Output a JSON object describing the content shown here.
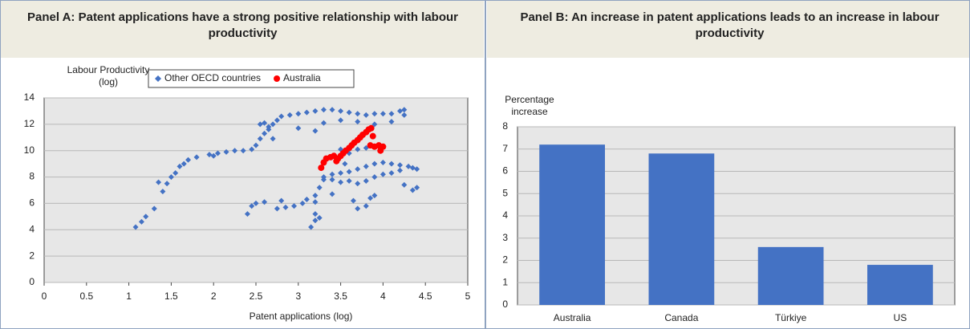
{
  "chart_data": [
    {
      "type": "scatter",
      "title": "Panel A: Patent applications have a strong positive relationship with labour productivity",
      "x_label": "Patent applications (log)",
      "y_label": "Labour Productivity (log)",
      "xlim": [
        0,
        5
      ],
      "xticks": [
        0,
        0.5,
        1,
        1.5,
        2,
        2.5,
        3,
        3.5,
        4,
        4.5,
        5
      ],
      "ylim": [
        0,
        14
      ],
      "yticks": [
        0,
        2,
        4,
        6,
        8,
        10,
        12,
        14
      ],
      "grid": true,
      "legend": "top",
      "series": [
        {
          "name": "Other OECD countries",
          "color": "#4472c4",
          "marker": "diamond",
          "x": [
            1.08,
            1.15,
            1.2,
            1.3,
            1.35,
            1.4,
            1.45,
            1.5,
            1.55,
            1.6,
            1.65,
            1.7,
            1.8,
            1.95,
            2.0,
            2.05,
            2.15,
            2.25,
            2.35,
            2.45,
            2.5,
            2.55,
            2.6,
            2.65,
            2.7,
            2.75,
            2.8,
            2.9,
            3.0,
            3.1,
            3.2,
            3.3,
            3.4,
            3.5,
            3.6,
            3.7,
            3.8,
            3.9,
            4.0,
            4.1,
            4.2,
            4.25,
            2.55,
            2.6,
            2.65,
            2.7,
            3.0,
            3.2,
            3.3,
            3.5,
            3.7,
            3.9,
            4.1,
            4.25,
            2.4,
            2.45,
            2.5,
            2.6,
            2.75,
            2.8,
            2.85,
            2.95,
            3.05,
            3.1,
            3.2,
            3.25,
            3.3,
            3.4,
            3.5,
            3.6,
            3.7,
            3.8,
            3.9,
            4.0,
            4.1,
            4.2,
            4.3,
            4.4,
            3.3,
            3.4,
            3.5,
            3.6,
            3.7,
            3.8,
            3.9,
            4.0,
            4.1,
            4.2,
            4.35,
            4.4,
            4.35,
            4.25,
            3.65,
            3.7,
            3.8,
            3.85,
            3.9,
            3.2,
            3.2,
            3.15,
            3.25,
            3.2,
            3.4,
            3.6,
            3.7,
            3.8,
            3.9,
            3.5,
            3.55
          ],
          "y": [
            4.2,
            4.6,
            5.0,
            5.6,
            7.6,
            6.9,
            7.5,
            8.0,
            8.3,
            8.8,
            9.0,
            9.3,
            9.5,
            9.7,
            9.6,
            9.8,
            9.9,
            10.0,
            10.0,
            10.1,
            10.4,
            10.9,
            11.3,
            11.6,
            12.0,
            12.3,
            12.6,
            12.7,
            12.8,
            12.9,
            13.0,
            13.1,
            13.1,
            13.0,
            12.9,
            12.8,
            12.7,
            12.8,
            12.8,
            12.8,
            13.0,
            13.1,
            12.0,
            12.1,
            11.8,
            10.9,
            11.7,
            11.5,
            12.1,
            12.3,
            12.2,
            12.0,
            12.2,
            12.7,
            5.2,
            5.8,
            6.0,
            6.1,
            5.6,
            6.2,
            5.7,
            5.8,
            6.0,
            6.3,
            6.6,
            7.2,
            7.8,
            8.2,
            8.3,
            8.4,
            8.6,
            8.8,
            9.0,
            9.1,
            9.0,
            8.9,
            8.8,
            8.6,
            8.0,
            7.8,
            7.6,
            7.7,
            7.5,
            7.7,
            8.0,
            8.2,
            8.3,
            8.5,
            8.7,
            7.2,
            7.0,
            7.4,
            6.2,
            5.6,
            5.8,
            6.4,
            6.6,
            5.2,
            4.7,
            4.2,
            4.9,
            6.1,
            6.7,
            9.8,
            10.1,
            10.2,
            10.3,
            10.1,
            9.0
          ]
        },
        {
          "name": "Australia",
          "color": "#ff0000",
          "marker": "circle",
          "x": [
            3.27,
            3.3,
            3.33,
            3.38,
            3.42,
            3.45,
            3.47,
            3.5,
            3.53,
            3.56,
            3.6,
            3.63,
            3.66,
            3.7,
            3.73,
            3.76,
            3.8,
            3.83,
            3.86,
            3.88,
            3.85,
            3.9,
            3.95,
            4.0,
            3.97
          ],
          "y": [
            8.7,
            9.1,
            9.4,
            9.5,
            9.6,
            9.2,
            9.4,
            9.6,
            9.8,
            10.0,
            10.2,
            10.4,
            10.6,
            10.8,
            11.0,
            11.2,
            11.4,
            11.6,
            11.7,
            11.1,
            10.4,
            10.3,
            10.4,
            10.3,
            10.0
          ]
        }
      ]
    },
    {
      "type": "bar",
      "title": "Panel B: An increase in patent applications leads to an increase in labour productivity",
      "y_label": "Percentage increase",
      "categories": [
        "Australia",
        "Canada",
        "Türkiye",
        "US"
      ],
      "values": [
        7.2,
        6.8,
        2.6,
        1.8
      ],
      "color": "#4472c4",
      "ylim": [
        0,
        8
      ],
      "yticks": [
        0,
        1,
        2,
        3,
        4,
        5,
        6,
        7,
        8
      ],
      "grid": true
    }
  ]
}
